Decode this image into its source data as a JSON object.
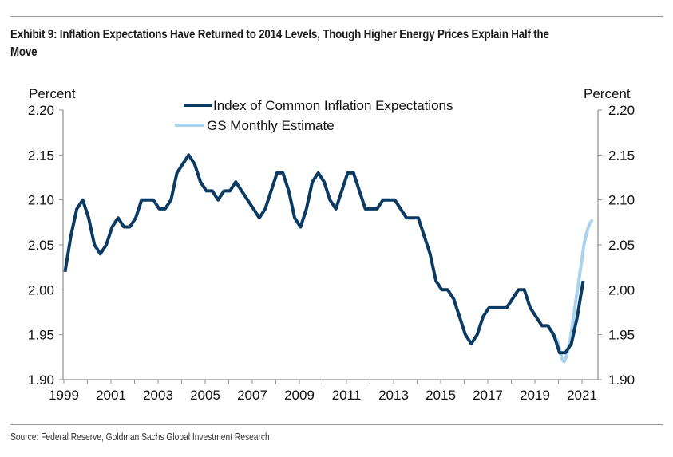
{
  "title": "Exhibit 9: Inflation Expectations Have Returned to 2014 Levels, Though Higher Energy Prices Explain Half the Move",
  "source": "Source: Federal Reserve, Goldman Sachs Global Investment Research",
  "colors": {
    "index": "#0b3a63",
    "estimate": "#a9d2ee",
    "axis": "#8c8c8c"
  },
  "chart_data": {
    "type": "line",
    "title": "Exhibit 9: Inflation Expectations Have Returned to 2014 Levels, Though Higher Energy Prices Explain Half the Move",
    "xlabel": "",
    "ylabel": "Percent",
    "ylabel_right": "Percent",
    "ylim": [
      1.9,
      2.2
    ],
    "yticks": [
      "2.20",
      "2.15",
      "2.10",
      "2.05",
      "2.00",
      "1.95",
      "1.90"
    ],
    "xlim": [
      1999.0,
      2021.8
    ],
    "xticks": [
      "1999",
      "2001",
      "2003",
      "2005",
      "2007",
      "2009",
      "2011",
      "2013",
      "2015",
      "2017",
      "2019",
      "2021"
    ],
    "grid": false,
    "legend_position": "top-center",
    "series": [
      {
        "name": "GS Monthly Estimate",
        "frequency": "monthly",
        "x": [
          2019.75,
          2019.917,
          2020.0,
          2020.083,
          2020.167,
          2020.25,
          2020.333,
          2020.417,
          2020.5,
          2020.583,
          2020.667,
          2020.75,
          2020.833,
          2020.917,
          2021.0,
          2021.083,
          2021.167,
          2021.25,
          2021.333,
          2021.417
        ],
        "values": [
          1.95,
          1.945,
          1.94,
          1.93,
          1.922,
          1.92,
          1.925,
          1.935,
          1.945,
          1.96,
          1.975,
          1.99,
          2.005,
          2.02,
          2.035,
          2.05,
          2.06,
          2.068,
          2.074,
          2.077
        ]
      },
      {
        "name": "Index of Common Inflation Expectations",
        "frequency": "quarterly",
        "start": 1999.0,
        "values": [
          2.02,
          2.06,
          2.09,
          2.1,
          2.08,
          2.05,
          2.04,
          2.05,
          2.07,
          2.08,
          2.07,
          2.07,
          2.08,
          2.1,
          2.1,
          2.1,
          2.09,
          2.09,
          2.1,
          2.13,
          2.14,
          2.15,
          2.14,
          2.12,
          2.11,
          2.11,
          2.1,
          2.11,
          2.11,
          2.12,
          2.11,
          2.1,
          2.09,
          2.08,
          2.09,
          2.11,
          2.13,
          2.13,
          2.11,
          2.08,
          2.07,
          2.09,
          2.12,
          2.13,
          2.12,
          2.1,
          2.09,
          2.11,
          2.13,
          2.13,
          2.11,
          2.09,
          2.09,
          2.09,
          2.1,
          2.1,
          2.1,
          2.09,
          2.08,
          2.08,
          2.08,
          2.06,
          2.04,
          2.01,
          2.0,
          2.0,
          1.99,
          1.97,
          1.95,
          1.94,
          1.95,
          1.97,
          1.98,
          1.98,
          1.98,
          1.98,
          1.99,
          2.0,
          2.0,
          1.98,
          1.97,
          1.96,
          1.96,
          1.95,
          1.93,
          1.93,
          1.94,
          1.97,
          2.01
        ]
      }
    ]
  }
}
